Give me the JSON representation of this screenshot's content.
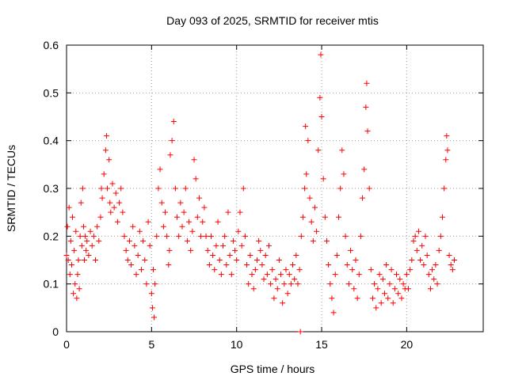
{
  "chart_data": {
    "type": "scatter",
    "title": "Day 093 of 2025, SRMTID for receiver mtis",
    "xlabel": "GPS time / hours",
    "ylabel": "SRMTID / TECUs",
    "xlim": [
      0,
      24.5
    ],
    "ylim": [
      0,
      0.6
    ],
    "xticks": [
      0,
      5,
      10,
      15,
      20
    ],
    "xtick_labels": [
      "0",
      "5",
      "10",
      "15",
      "20"
    ],
    "yticks": [
      0,
      0.1,
      0.2,
      0.3,
      0.4,
      0.5,
      0.6
    ],
    "ytick_labels": [
      "0",
      "0.1",
      "0.2",
      "0.3",
      "0.4",
      "0.5",
      "0.6"
    ],
    "grid": true,
    "marker": "plus",
    "color": "#ff0000",
    "series": [
      {
        "name": "SRMTID",
        "points": [
          [
            0.0,
            0.16
          ],
          [
            0.05,
            0.22
          ],
          [
            0.1,
            0.15
          ],
          [
            0.15,
            0.26
          ],
          [
            0.2,
            0.12
          ],
          [
            0.25,
            0.19
          ],
          [
            0.3,
            0.14
          ],
          [
            0.35,
            0.24
          ],
          [
            0.4,
            0.08
          ],
          [
            0.45,
            0.17
          ],
          [
            0.5,
            0.1
          ],
          [
            0.55,
            0.21
          ],
          [
            0.6,
            0.07
          ],
          [
            0.65,
            0.12
          ],
          [
            0.7,
            0.15
          ],
          [
            0.75,
            0.09
          ],
          [
            0.8,
            0.2
          ],
          [
            0.85,
            0.27
          ],
          [
            0.9,
            0.18
          ],
          [
            0.95,
            0.3
          ],
          [
            1.0,
            0.22
          ],
          [
            1.05,
            0.15
          ],
          [
            1.1,
            0.2
          ],
          [
            1.15,
            0.17
          ],
          [
            1.2,
            0.19
          ],
          [
            1.3,
            0.16
          ],
          [
            1.4,
            0.21
          ],
          [
            1.5,
            0.18
          ],
          [
            1.6,
            0.2
          ],
          [
            1.7,
            0.15
          ],
          [
            1.8,
            0.22
          ],
          [
            1.9,
            0.19
          ],
          [
            2.0,
            0.24
          ],
          [
            2.05,
            0.3
          ],
          [
            2.1,
            0.28
          ],
          [
            2.2,
            0.33
          ],
          [
            2.3,
            0.38
          ],
          [
            2.35,
            0.41
          ],
          [
            2.4,
            0.3
          ],
          [
            2.5,
            0.36
          ],
          [
            2.55,
            0.27
          ],
          [
            2.6,
            0.25
          ],
          [
            2.7,
            0.31
          ],
          [
            2.8,
            0.26
          ],
          [
            2.9,
            0.29
          ],
          [
            3.0,
            0.23
          ],
          [
            3.1,
            0.27
          ],
          [
            3.2,
            0.3
          ],
          [
            3.3,
            0.25
          ],
          [
            3.4,
            0.2
          ],
          [
            3.5,
            0.17
          ],
          [
            3.6,
            0.15
          ],
          [
            3.7,
            0.19
          ],
          [
            3.8,
            0.14
          ],
          [
            3.9,
            0.22
          ],
          [
            4.0,
            0.18
          ],
          [
            4.1,
            0.12
          ],
          [
            4.2,
            0.16
          ],
          [
            4.3,
            0.21
          ],
          [
            4.4,
            0.13
          ],
          [
            4.5,
            0.19
          ],
          [
            4.6,
            0.15
          ],
          [
            4.7,
            0.1
          ],
          [
            4.8,
            0.23
          ],
          [
            4.9,
            0.18
          ],
          [
            5.0,
            0.08
          ],
          [
            5.05,
            0.05
          ],
          [
            5.1,
            0.13
          ],
          [
            5.15,
            0.03
          ],
          [
            5.2,
            0.1
          ],
          [
            5.3,
            0.2
          ],
          [
            5.4,
            0.3
          ],
          [
            5.5,
            0.34
          ],
          [
            5.6,
            0.27
          ],
          [
            5.7,
            0.22
          ],
          [
            5.8,
            0.25
          ],
          [
            5.9,
            0.2
          ],
          [
            6.0,
            0.14
          ],
          [
            6.05,
            0.17
          ],
          [
            6.1,
            0.37
          ],
          [
            6.2,
            0.4
          ],
          [
            6.3,
            0.44
          ],
          [
            6.4,
            0.3
          ],
          [
            6.5,
            0.24
          ],
          [
            6.6,
            0.2
          ],
          [
            6.7,
            0.27
          ],
          [
            6.8,
            0.22
          ],
          [
            6.9,
            0.25
          ],
          [
            7.0,
            0.3
          ],
          [
            7.1,
            0.19
          ],
          [
            7.2,
            0.23
          ],
          [
            7.3,
            0.17
          ],
          [
            7.4,
            0.21
          ],
          [
            7.5,
            0.36
          ],
          [
            7.6,
            0.32
          ],
          [
            7.7,
            0.24
          ],
          [
            7.8,
            0.28
          ],
          [
            7.9,
            0.2
          ],
          [
            8.0,
            0.23
          ],
          [
            8.1,
            0.26
          ],
          [
            8.2,
            0.2
          ],
          [
            8.3,
            0.17
          ],
          [
            8.4,
            0.14
          ],
          [
            8.5,
            0.2
          ],
          [
            8.6,
            0.16
          ],
          [
            8.7,
            0.13
          ],
          [
            8.8,
            0.18
          ],
          [
            8.9,
            0.23
          ],
          [
            9.0,
            0.15
          ],
          [
            9.1,
            0.12
          ],
          [
            9.2,
            0.18
          ],
          [
            9.3,
            0.2
          ],
          [
            9.4,
            0.14
          ],
          [
            9.5,
            0.25
          ],
          [
            9.6,
            0.16
          ],
          [
            9.7,
            0.12
          ],
          [
            9.8,
            0.19
          ],
          [
            9.9,
            0.17
          ],
          [
            10.0,
            0.15
          ],
          [
            10.1,
            0.21
          ],
          [
            10.2,
            0.25
          ],
          [
            10.3,
            0.18
          ],
          [
            10.4,
            0.3
          ],
          [
            10.5,
            0.2
          ],
          [
            10.6,
            0.14
          ],
          [
            10.7,
            0.1
          ],
          [
            10.8,
            0.16
          ],
          [
            10.9,
            0.12
          ],
          [
            11.0,
            0.09
          ],
          [
            11.1,
            0.13
          ],
          [
            11.2,
            0.15
          ],
          [
            11.3,
            0.19
          ],
          [
            11.4,
            0.17
          ],
          [
            11.5,
            0.14
          ],
          [
            11.6,
            0.11
          ],
          [
            11.7,
            0.16
          ],
          [
            11.8,
            0.12
          ],
          [
            11.9,
            0.18
          ],
          [
            12.0,
            0.1
          ],
          [
            12.1,
            0.13
          ],
          [
            12.2,
            0.07
          ],
          [
            12.3,
            0.11
          ],
          [
            12.4,
            0.09
          ],
          [
            12.5,
            0.15
          ],
          [
            12.6,
            0.12
          ],
          [
            12.7,
            0.06
          ],
          [
            12.8,
            0.1
          ],
          [
            12.9,
            0.13
          ],
          [
            13.0,
            0.08
          ],
          [
            13.1,
            0.12
          ],
          [
            13.2,
            0.1
          ],
          [
            13.3,
            0.14
          ],
          [
            13.4,
            0.11
          ],
          [
            13.5,
            0.16
          ],
          [
            13.6,
            0.1
          ],
          [
            13.7,
            0.13
          ],
          [
            13.75,
            0.0
          ],
          [
            13.8,
            0.2
          ],
          [
            13.9,
            0.24
          ],
          [
            14.0,
            0.3
          ],
          [
            14.05,
            0.43
          ],
          [
            14.1,
            0.33
          ],
          [
            14.2,
            0.4
          ],
          [
            14.3,
            0.28
          ],
          [
            14.4,
            0.23
          ],
          [
            14.5,
            0.19
          ],
          [
            14.6,
            0.26
          ],
          [
            14.7,
            0.21
          ],
          [
            14.8,
            0.38
          ],
          [
            14.9,
            0.49
          ],
          [
            14.95,
            0.58
          ],
          [
            15.0,
            0.45
          ],
          [
            15.1,
            0.32
          ],
          [
            15.2,
            0.24
          ],
          [
            15.3,
            0.19
          ],
          [
            15.4,
            0.14
          ],
          [
            15.5,
            0.1
          ],
          [
            15.6,
            0.07
          ],
          [
            15.7,
            0.04
          ],
          [
            15.8,
            0.12
          ],
          [
            15.9,
            0.16
          ],
          [
            16.0,
            0.24
          ],
          [
            16.1,
            0.3
          ],
          [
            16.2,
            0.38
          ],
          [
            16.3,
            0.33
          ],
          [
            16.4,
            0.2
          ],
          [
            16.5,
            0.14
          ],
          [
            16.6,
            0.1
          ],
          [
            16.7,
            0.17
          ],
          [
            16.8,
            0.13
          ],
          [
            16.9,
            0.09
          ],
          [
            17.0,
            0.15
          ],
          [
            17.1,
            0.07
          ],
          [
            17.2,
            0.12
          ],
          [
            17.3,
            0.2
          ],
          [
            17.4,
            0.28
          ],
          [
            17.5,
            0.34
          ],
          [
            17.6,
            0.47
          ],
          [
            17.65,
            0.52
          ],
          [
            17.7,
            0.42
          ],
          [
            17.8,
            0.3
          ],
          [
            17.9,
            0.13
          ],
          [
            18.0,
            0.07
          ],
          [
            18.1,
            0.1
          ],
          [
            18.2,
            0.05
          ],
          [
            18.3,
            0.09
          ],
          [
            18.4,
            0.12
          ],
          [
            18.5,
            0.06
          ],
          [
            18.6,
            0.11
          ],
          [
            18.7,
            0.08
          ],
          [
            18.8,
            0.14
          ],
          [
            18.9,
            0.07
          ],
          [
            19.0,
            0.1
          ],
          [
            19.1,
            0.13
          ],
          [
            19.2,
            0.06
          ],
          [
            19.3,
            0.09
          ],
          [
            19.4,
            0.12
          ],
          [
            19.5,
            0.08
          ],
          [
            19.6,
            0.11
          ],
          [
            19.7,
            0.07
          ],
          [
            19.8,
            0.1
          ],
          [
            19.9,
            0.09
          ],
          [
            20.0,
            0.12
          ],
          [
            20.1,
            0.09
          ],
          [
            20.2,
            0.13
          ],
          [
            20.3,
            0.15
          ],
          [
            20.4,
            0.19
          ],
          [
            20.5,
            0.2
          ],
          [
            20.6,
            0.17
          ],
          [
            20.7,
            0.21
          ],
          [
            20.8,
            0.15
          ],
          [
            20.9,
            0.18
          ],
          [
            21.0,
            0.14
          ],
          [
            21.1,
            0.2
          ],
          [
            21.2,
            0.16
          ],
          [
            21.3,
            0.12
          ],
          [
            21.4,
            0.09
          ],
          [
            21.5,
            0.13
          ],
          [
            21.6,
            0.11
          ],
          [
            21.7,
            0.14
          ],
          [
            21.8,
            0.1
          ],
          [
            21.9,
            0.17
          ],
          [
            22.0,
            0.2
          ],
          [
            22.1,
            0.24
          ],
          [
            22.2,
            0.3
          ],
          [
            22.3,
            0.36
          ],
          [
            22.35,
            0.41
          ],
          [
            22.4,
            0.38
          ],
          [
            22.5,
            0.16
          ],
          [
            22.6,
            0.14
          ],
          [
            22.7,
            0.13
          ],
          [
            22.8,
            0.15
          ]
        ]
      }
    ]
  }
}
